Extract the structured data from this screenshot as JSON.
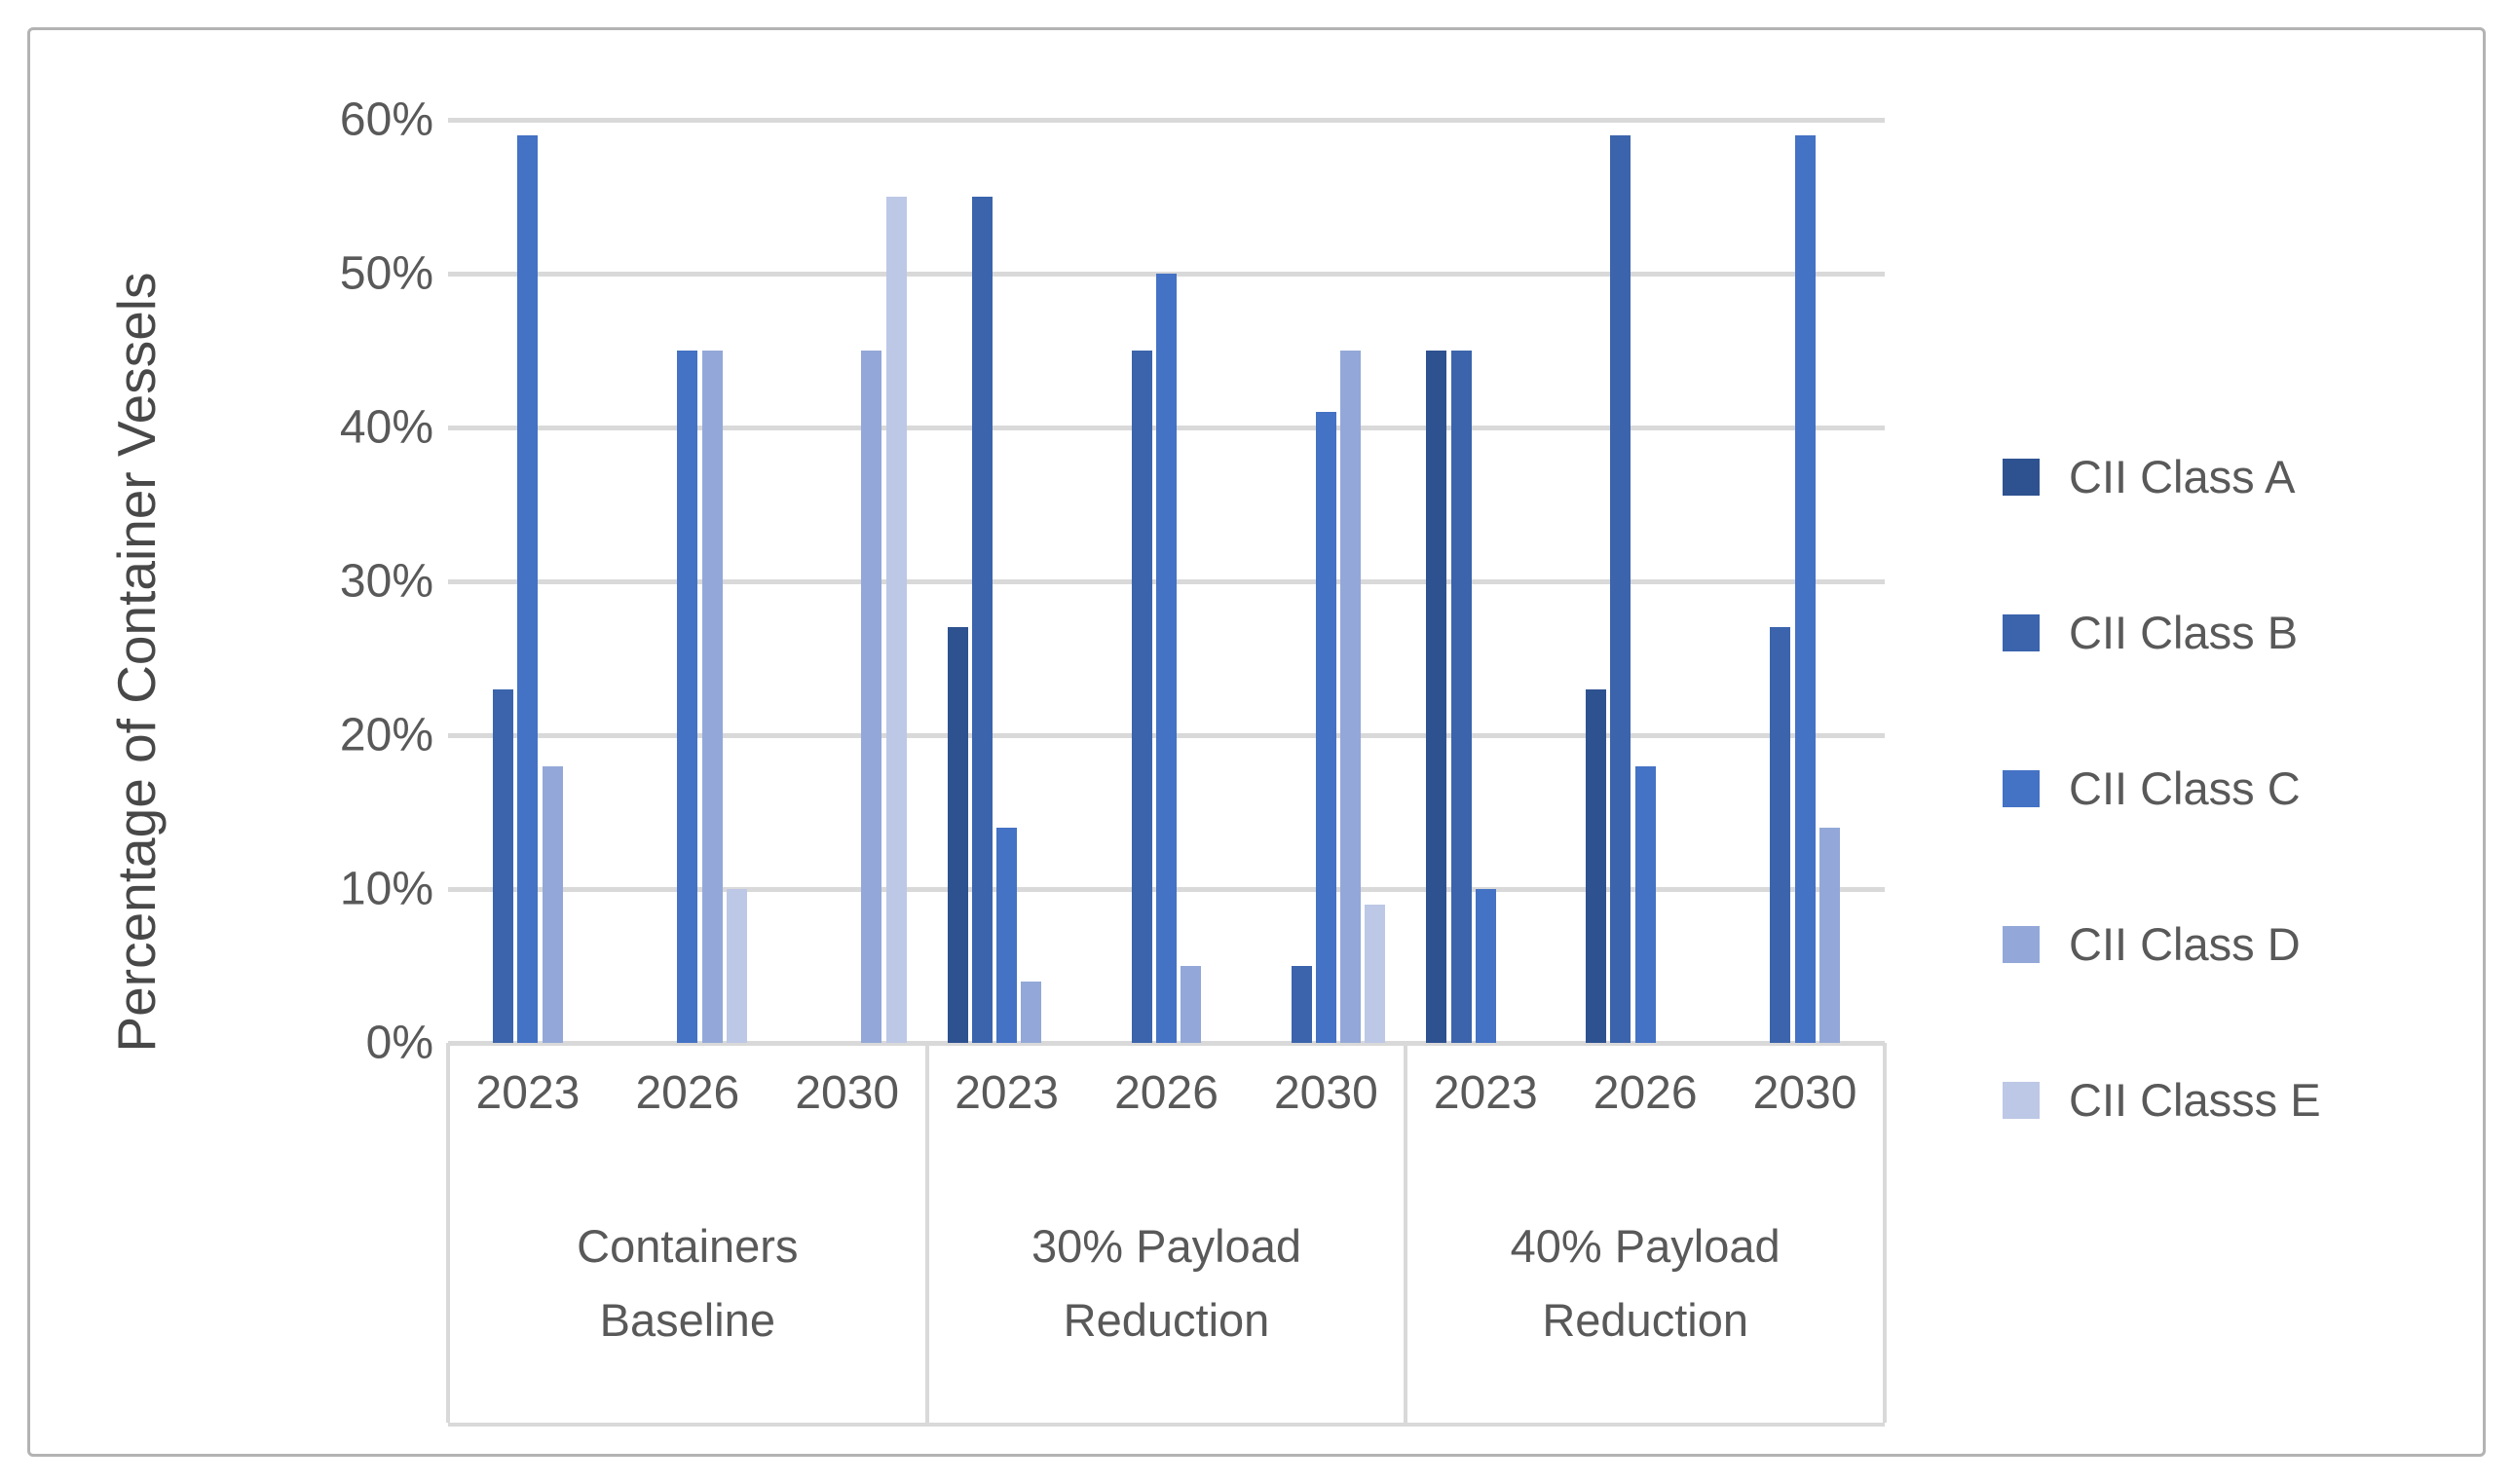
{
  "chart_data": {
    "type": "bar",
    "title": "",
    "ylabel": "Percentage of Container Vessels",
    "xlabel": "",
    "units": "percent",
    "ylim_percent": [
      0,
      60
    ],
    "y_tick_labels": [
      "60%",
      "50%",
      "40%",
      "30%",
      "20%",
      "10%",
      "0%"
    ],
    "grid": true,
    "legend_position": "right",
    "group_labels": [
      "Containers Baseline",
      "30% Payload Reduction",
      "40% Payload Reduction"
    ],
    "year_labels": [
      "2023",
      "2026",
      "2030"
    ],
    "categories": [
      "Containers Baseline 2023",
      "Containers Baseline 2026",
      "Containers Baseline 2030",
      "30% Payload Reduction 2023",
      "30% Payload Reduction 2026",
      "30% Payload Reduction 2030",
      "40% Payload Reduction 2023",
      "40% Payload Reduction 2026",
      "40% Payload Reduction 2030"
    ],
    "series": [
      {
        "name": "CII Class A",
        "color": "#2e5290",
        "values": [
          0,
          0,
          0,
          27,
          0,
          0,
          45,
          23,
          0
        ]
      },
      {
        "name": "CII Class B",
        "color": "#3b64ac",
        "values": [
          23,
          0,
          0,
          55,
          45,
          5,
          45,
          59,
          27
        ]
      },
      {
        "name": "CII Class C",
        "color": "#4472c4",
        "values": [
          59,
          45,
          0,
          14,
          50,
          41,
          10,
          18,
          59
        ]
      },
      {
        "name": "CII Class D",
        "color": "#93a8d8",
        "values": [
          18,
          45,
          45,
          4,
          5,
          45,
          0,
          0,
          14
        ]
      },
      {
        "name": "CII Classs E",
        "color": "#bdc8e6",
        "values": [
          0,
          10,
          55,
          0,
          0,
          9,
          0,
          0,
          0
        ]
      }
    ]
  },
  "colors": {
    "gridline": "#d9d9d9",
    "axis_text": "#595959",
    "y_title_text": "#484848",
    "figure_border": "#b3b3b3",
    "background": "#ffffff"
  }
}
